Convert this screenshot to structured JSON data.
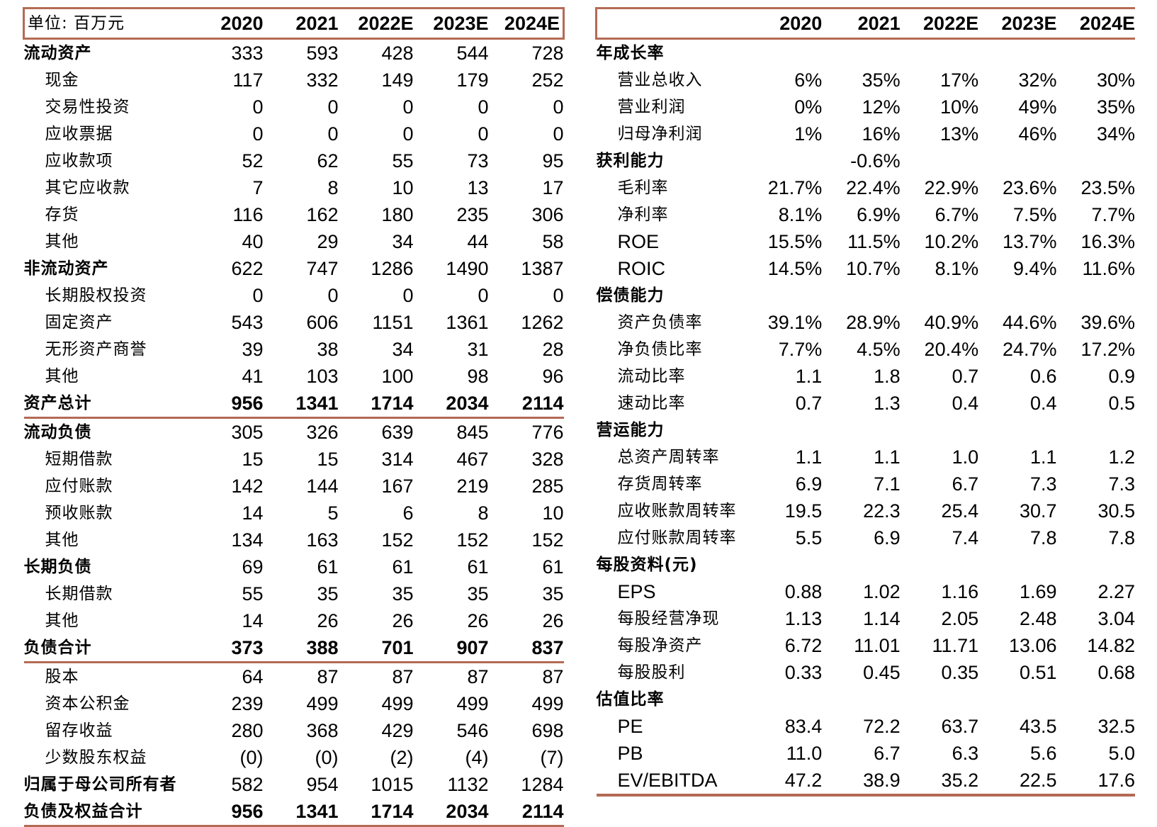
{
  "balance_sheet": {
    "header": {
      "unit_label": "单位: 百万元",
      "years": [
        "2020",
        "2021",
        "2022E",
        "2023E",
        "2024E"
      ]
    },
    "rows": [
      {
        "label": "流动资产",
        "values": [
          "333",
          "593",
          "428",
          "544",
          "728"
        ],
        "level": 0
      },
      {
        "label": "现金",
        "values": [
          "117",
          "332",
          "149",
          "179",
          "252"
        ],
        "level": 1
      },
      {
        "label": "交易性投资",
        "values": [
          "0",
          "0",
          "0",
          "0",
          "0"
        ],
        "level": 1
      },
      {
        "label": "应收票据",
        "values": [
          "0",
          "0",
          "0",
          "0",
          "0"
        ],
        "level": 1
      },
      {
        "label": "应收款项",
        "values": [
          "52",
          "62",
          "55",
          "73",
          "95"
        ],
        "level": 1
      },
      {
        "label": "其它应收款",
        "values": [
          "7",
          "8",
          "10",
          "13",
          "17"
        ],
        "level": 1
      },
      {
        "label": "存货",
        "values": [
          "116",
          "162",
          "180",
          "235",
          "306"
        ],
        "level": 1
      },
      {
        "label": "其他",
        "values": [
          "40",
          "29",
          "34",
          "44",
          "58"
        ],
        "level": 1
      },
      {
        "label": "非流动资产",
        "values": [
          "622",
          "747",
          "1286",
          "1490",
          "1387"
        ],
        "level": 0
      },
      {
        "label": "长期股权投资",
        "values": [
          "0",
          "0",
          "0",
          "0",
          "0"
        ],
        "level": 1
      },
      {
        "label": "固定资产",
        "values": [
          "543",
          "606",
          "1151",
          "1361",
          "1262"
        ],
        "level": 1
      },
      {
        "label": "无形资产商誉",
        "values": [
          "39",
          "38",
          "34",
          "31",
          "28"
        ],
        "level": 1
      },
      {
        "label": "其他",
        "values": [
          "41",
          "103",
          "100",
          "98",
          "96"
        ],
        "level": 1
      },
      {
        "label": "资产总计",
        "values": [
          "956",
          "1341",
          "1714",
          "2034",
          "2114"
        ],
        "level": 0,
        "bold": true,
        "rule": true
      },
      {
        "label": "流动负债",
        "values": [
          "305",
          "326",
          "639",
          "845",
          "776"
        ],
        "level": 0
      },
      {
        "label": "短期借款",
        "values": [
          "15",
          "15",
          "314",
          "467",
          "328"
        ],
        "level": 1
      },
      {
        "label": "应付账款",
        "values": [
          "142",
          "144",
          "167",
          "219",
          "285"
        ],
        "level": 1
      },
      {
        "label": "预收账款",
        "values": [
          "14",
          "5",
          "6",
          "8",
          "10"
        ],
        "level": 1
      },
      {
        "label": "其他",
        "values": [
          "134",
          "163",
          "152",
          "152",
          "152"
        ],
        "level": 1
      },
      {
        "label": "长期负债",
        "values": [
          "69",
          "61",
          "61",
          "61",
          "61"
        ],
        "level": 0
      },
      {
        "label": "长期借款",
        "values": [
          "55",
          "35",
          "35",
          "35",
          "35"
        ],
        "level": 1
      },
      {
        "label": "其他",
        "values": [
          "14",
          "26",
          "26",
          "26",
          "26"
        ],
        "level": 1
      },
      {
        "label": "负债合计",
        "values": [
          "373",
          "388",
          "701",
          "907",
          "837"
        ],
        "level": 0,
        "bold": true,
        "rule": true
      },
      {
        "label": "股本",
        "values": [
          "64",
          "87",
          "87",
          "87",
          "87"
        ],
        "level": 1
      },
      {
        "label": "资本公积金",
        "values": [
          "239",
          "499",
          "499",
          "499",
          "499"
        ],
        "level": 1
      },
      {
        "label": "留存收益",
        "values": [
          "280",
          "368",
          "429",
          "546",
          "698"
        ],
        "level": 1
      },
      {
        "label": "少数股东权益",
        "values": [
          "(0)",
          "(0)",
          "(2)",
          "(4)",
          "(7)"
        ],
        "level": 1
      },
      {
        "label": "归属于母公司所有者",
        "values": [
          "582",
          "954",
          "1015",
          "1132",
          "1284"
        ],
        "level": 0
      },
      {
        "label": "负债及权益合计",
        "values": [
          "956",
          "1341",
          "1714",
          "2034",
          "2114"
        ],
        "level": 0,
        "bold": true,
        "rule": true
      }
    ]
  },
  "ratios": {
    "header": {
      "years": [
        "2020",
        "2021",
        "2022E",
        "2023E",
        "2024E"
      ]
    },
    "rows": [
      {
        "label": "年成长率",
        "values": [
          "",
          "",
          "",
          "",
          ""
        ],
        "section": true
      },
      {
        "label": "营业总收入",
        "values": [
          "6%",
          "35%",
          "17%",
          "32%",
          "30%"
        ],
        "level": 1
      },
      {
        "label": "营业利润",
        "values": [
          "0%",
          "12%",
          "10%",
          "49%",
          "35%"
        ],
        "level": 1
      },
      {
        "label": "归母净利润",
        "values": [
          "1%",
          "16%",
          "13%",
          "46%",
          "34%"
        ],
        "level": 1
      },
      {
        "label": "获利能力",
        "values": [
          "",
          "-0.6%",
          "",
          "",
          ""
        ],
        "section": true
      },
      {
        "label": "毛利率",
        "values": [
          "21.7%",
          "22.4%",
          "22.9%",
          "23.6%",
          "23.5%"
        ],
        "level": 1
      },
      {
        "label": "净利率",
        "values": [
          "8.1%",
          "6.9%",
          "6.7%",
          "7.5%",
          "7.7%"
        ],
        "level": 1
      },
      {
        "label": "ROE",
        "values": [
          "15.5%",
          "11.5%",
          "10.2%",
          "13.7%",
          "16.3%"
        ],
        "level": 1,
        "latin": true
      },
      {
        "label": "ROIC",
        "values": [
          "14.5%",
          "10.7%",
          "8.1%",
          "9.4%",
          "11.6%"
        ],
        "level": 1,
        "latin": true
      },
      {
        "label": "偿债能力",
        "values": [
          "",
          "",
          "",
          "",
          ""
        ],
        "section": true
      },
      {
        "label": "资产负债率",
        "values": [
          "39.1%",
          "28.9%",
          "40.9%",
          "44.6%",
          "39.6%"
        ],
        "level": 1
      },
      {
        "label": "净负债比率",
        "values": [
          "7.7%",
          "4.5%",
          "20.4%",
          "24.7%",
          "17.2%"
        ],
        "level": 1
      },
      {
        "label": "流动比率",
        "values": [
          "1.1",
          "1.8",
          "0.7",
          "0.6",
          "0.9"
        ],
        "level": 1
      },
      {
        "label": "速动比率",
        "values": [
          "0.7",
          "1.3",
          "0.4",
          "0.4",
          "0.5"
        ],
        "level": 1
      },
      {
        "label": "营运能力",
        "values": [
          "",
          "",
          "",
          "",
          ""
        ],
        "section": true
      },
      {
        "label": "总资产周转率",
        "values": [
          "1.1",
          "1.1",
          "1.0",
          "1.1",
          "1.2"
        ],
        "level": 1
      },
      {
        "label": "存货周转率",
        "values": [
          "6.9",
          "7.1",
          "6.7",
          "7.3",
          "7.3"
        ],
        "level": 1
      },
      {
        "label": "应收账款周转率",
        "values": [
          "19.5",
          "22.3",
          "25.4",
          "30.7",
          "30.5"
        ],
        "level": 1
      },
      {
        "label": "应付账款周转率",
        "values": [
          "5.5",
          "6.9",
          "7.4",
          "7.8",
          "7.8"
        ],
        "level": 1
      },
      {
        "label": "每股资料(元)",
        "values": [
          "",
          "",
          "",
          "",
          ""
        ],
        "section": true
      },
      {
        "label": "EPS",
        "values": [
          "0.88",
          "1.02",
          "1.16",
          "1.69",
          "2.27"
        ],
        "level": 1,
        "latin": true
      },
      {
        "label": "每股经营净现",
        "values": [
          "1.13",
          "1.14",
          "2.05",
          "2.48",
          "3.04"
        ],
        "level": 1
      },
      {
        "label": "每股净资产",
        "values": [
          "6.72",
          "11.01",
          "11.71",
          "13.06",
          "14.82"
        ],
        "level": 1
      },
      {
        "label": "每股股利",
        "values": [
          "0.33",
          "0.45",
          "0.35",
          "0.51",
          "0.68"
        ],
        "level": 1
      },
      {
        "label": "估值比率",
        "values": [
          "",
          "",
          "",
          "",
          ""
        ],
        "section": true
      },
      {
        "label": "PE",
        "values": [
          "83.4",
          "72.2",
          "63.7",
          "43.5",
          "32.5"
        ],
        "level": 1,
        "latin": true
      },
      {
        "label": "PB",
        "values": [
          "11.0",
          "6.7",
          "6.3",
          "5.6",
          "5.0"
        ],
        "level": 1,
        "latin": true
      },
      {
        "label": "EV/EBITDA",
        "values": [
          "47.2",
          "38.9",
          "35.2",
          "22.5",
          "17.6"
        ],
        "level": 1,
        "latin": true
      }
    ]
  },
  "colors": {
    "rule": "#b46a55"
  }
}
